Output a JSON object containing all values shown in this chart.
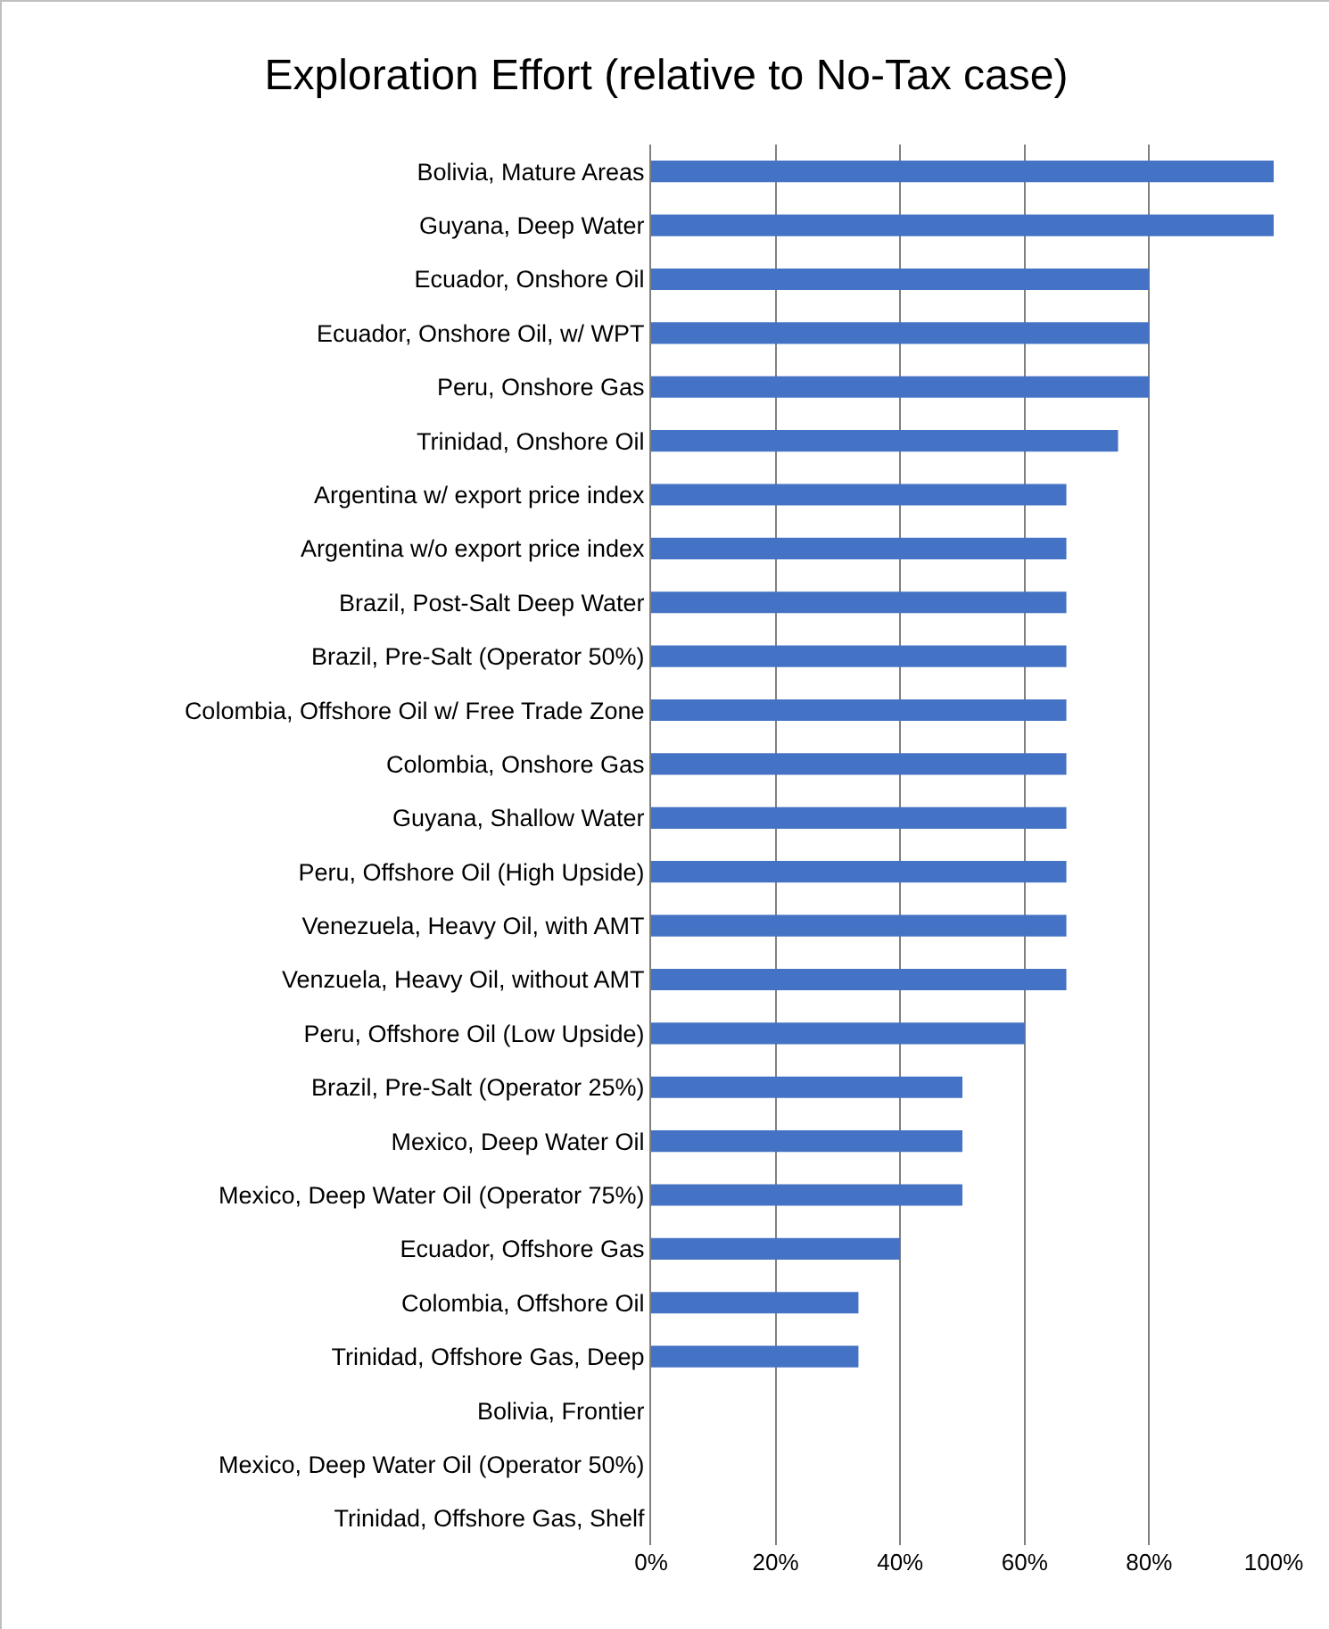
{
  "chart_data": {
    "type": "bar",
    "orientation": "horizontal",
    "title": "Exploration Effort (relative to No-Tax case)",
    "categories": [
      "Bolivia, Mature Areas",
      "Guyana, Deep Water",
      "Ecuador, Onshore Oil",
      "Ecuador, Onshore Oil, w/ WPT",
      "Peru, Onshore Gas",
      "Trinidad, Onshore Oil",
      "Argentina w/ export price index",
      "Argentina w/o export price index",
      "Brazil, Post-Salt Deep Water",
      "Brazil, Pre-Salt (Operator 50%)",
      "Colombia, Offshore Oil w/ Free Trade Zone",
      "Colombia, Onshore Gas",
      "Guyana, Shallow Water",
      "Peru, Offshore Oil (High Upside)",
      "Venezuela, Heavy Oil, with AMT",
      "Venzuela, Heavy Oil, without AMT",
      "Peru, Offshore Oil (Low Upside)",
      "Brazil, Pre-Salt (Operator 25%)",
      "Mexico, Deep Water Oil",
      "Mexico, Deep Water Oil (Operator 75%)",
      "Ecuador, Offshore Gas",
      "Colombia, Offshore Oil",
      "Trinidad, Offshore Gas, Deep",
      "Bolivia, Frontier",
      "Mexico, Deep Water Oil (Operator 50%)",
      "Trinidad, Offshore Gas, Shelf"
    ],
    "values": [
      100,
      100,
      80,
      80,
      80,
      75,
      66.7,
      66.7,
      66.7,
      66.7,
      66.7,
      66.7,
      66.7,
      66.7,
      66.7,
      66.7,
      60,
      50,
      50,
      50,
      40,
      33.3,
      33.3,
      0,
      0,
      0
    ],
    "color": "#4472c4",
    "xlim": [
      0,
      100
    ],
    "xticks": [
      {
        "value": 0,
        "label": "0%"
      },
      {
        "value": 20,
        "label": "20%"
      },
      {
        "value": 40,
        "label": "40%"
      },
      {
        "value": 60,
        "label": "60%"
      },
      {
        "value": 80,
        "label": "80%"
      },
      {
        "value": 100,
        "label": "100%"
      }
    ],
    "grid": "x"
  }
}
